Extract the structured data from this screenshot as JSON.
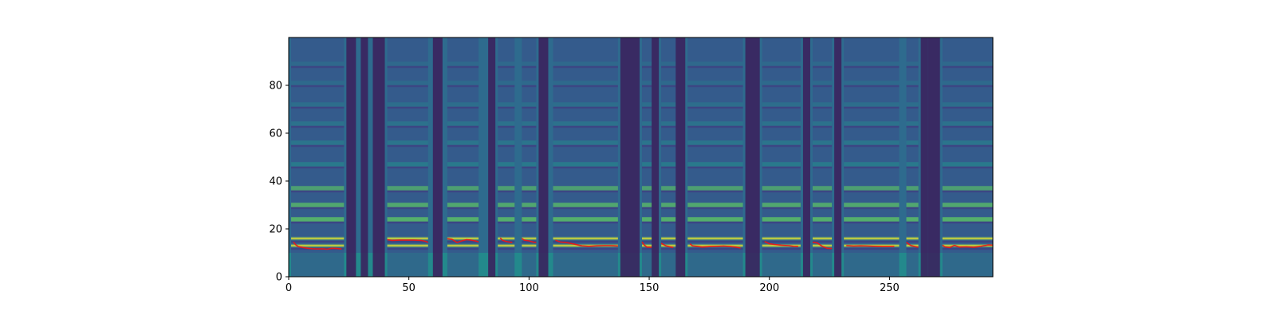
{
  "chart_data": {
    "type": "heatmap",
    "title": "",
    "xlabel": "",
    "ylabel": "",
    "xlim": [
      0,
      293
    ],
    "ylim": [
      0,
      100
    ],
    "x_ticks": [
      0,
      50,
      100,
      150,
      200,
      250
    ],
    "y_ticks": [
      0,
      20,
      40,
      60,
      80
    ],
    "colormap": "viridis",
    "grid": false,
    "heatmap": {
      "description_bands": "mel-spectrogram-like image, bright horizontal harmonic bands during voiced segments",
      "voiced_segments": [
        [
          1,
          23
        ],
        [
          41,
          58
        ],
        [
          66,
          79
        ],
        [
          87,
          94
        ],
        [
          97,
          103
        ],
        [
          110,
          137
        ],
        [
          147,
          151
        ],
        [
          155,
          161
        ],
        [
          166,
          189
        ],
        [
          197,
          213
        ],
        [
          218,
          226
        ],
        [
          231,
          254
        ],
        [
          257,
          262
        ],
        [
          272,
          293
        ]
      ],
      "dark_gaps": [
        [
          24,
          28
        ],
        [
          30,
          33
        ],
        [
          35,
          40
        ],
        [
          60,
          64
        ],
        [
          83,
          86
        ],
        [
          104,
          108
        ],
        [
          138,
          146
        ],
        [
          151,
          154
        ],
        [
          161,
          165
        ],
        [
          190,
          196
        ],
        [
          214,
          217
        ],
        [
          227,
          230
        ],
        [
          263,
          266
        ],
        [
          266,
          271
        ]
      ],
      "harmonic_rows": [
        13,
        16,
        24,
        30,
        37,
        47,
        56,
        64,
        72,
        81,
        89
      ]
    },
    "series": [
      {
        "color": "#e31a1c",
        "segments": [
          [
            [
              2,
              14.5
            ],
            [
              3,
              13.3
            ],
            [
              4,
              12.6
            ],
            [
              6,
              12.2
            ],
            [
              8,
              11.9
            ],
            [
              10,
              11.7
            ],
            [
              12,
              11.6
            ],
            [
              14,
              11.7
            ],
            [
              16,
              11.5
            ],
            [
              18,
              11.9
            ],
            [
              20,
              11.8
            ],
            [
              22,
              11.6
            ]
          ],
          [
            [
              41,
              15.5
            ],
            [
              43,
              15.2
            ],
            [
              46,
              15.3
            ],
            [
              49,
              15.3
            ],
            [
              52,
              15.3
            ],
            [
              55,
              15.2
            ],
            [
              57,
              14.8
            ],
            [
              58,
              14.3
            ]
          ],
          [
            [
              66,
              15.9
            ],
            [
              68,
              15.6
            ],
            [
              70,
              14.3
            ],
            [
              72,
              15.0
            ],
            [
              74,
              15.5
            ],
            [
              76,
              15.3
            ],
            [
              78,
              14.9
            ],
            [
              79,
              14.5
            ]
          ],
          [
            [
              88,
              16.2
            ],
            [
              89,
              15.2
            ],
            [
              91,
              14.6
            ],
            [
              93,
              14.3
            ]
          ],
          [
            [
              97,
              16.0
            ],
            [
              98,
              15.3
            ],
            [
              100,
              15.0
            ],
            [
              102,
              14.4
            ],
            [
              103,
              14.3
            ]
          ],
          [
            [
              111,
              15.3
            ],
            [
              113,
              14.5
            ],
            [
              116,
              14.2
            ],
            [
              119,
              13.6
            ],
            [
              122,
              12.9
            ],
            [
              125,
              12.7
            ],
            [
              128,
              12.9
            ],
            [
              131,
              13.0
            ],
            [
              134,
              13.0
            ],
            [
              137,
              12.8
            ]
          ],
          [
            [
              147,
              14.5
            ],
            [
              148,
              13.2
            ],
            [
              149,
              12.4
            ],
            [
              151,
              12.3
            ]
          ],
          [
            [
              155,
              14.0
            ],
            [
              157,
              12.9
            ],
            [
              159,
              12.4
            ],
            [
              160,
              12.2
            ]
          ],
          [
            [
              167,
              13.8
            ],
            [
              168,
              12.9
            ],
            [
              170,
              12.7
            ],
            [
              172,
              12.4
            ],
            [
              175,
              12.6
            ],
            [
              178,
              12.7
            ],
            [
              181,
              12.8
            ],
            [
              184,
              12.6
            ],
            [
              186,
              12.4
            ],
            [
              188,
              12.0
            ]
          ],
          [
            [
              198,
              14.7
            ],
            [
              200,
              13.8
            ],
            [
              202,
              13.5
            ],
            [
              205,
              13.2
            ],
            [
              208,
              13.0
            ],
            [
              210,
              12.7
            ],
            [
              212,
              12.6
            ]
          ],
          [
            [
              218,
              14.4
            ],
            [
              220,
              14.1
            ],
            [
              222,
              12.7
            ],
            [
              224,
              11.9
            ],
            [
              226,
              11.8
            ]
          ],
          [
            [
              232,
              13.0
            ],
            [
              235,
              12.8
            ],
            [
              238,
              12.9
            ],
            [
              241,
              12.8
            ],
            [
              244,
              12.7
            ],
            [
              247,
              12.6
            ],
            [
              250,
              12.6
            ],
            [
              252,
              12.6
            ]
          ],
          [
            [
              257,
              14.3
            ],
            [
              259,
              13.0
            ],
            [
              261,
              12.5
            ],
            [
              262,
              12.3
            ]
          ],
          [
            [
              272,
              13.2
            ],
            [
              273,
              12.5
            ],
            [
              275,
              12.2
            ],
            [
              277,
              13.1
            ],
            [
              279,
              12.4
            ],
            [
              282,
              12.5
            ],
            [
              285,
              12.3
            ],
            [
              288,
              12.7
            ],
            [
              291,
              13.3
            ],
            [
              293,
              13.2
            ]
          ]
        ]
      }
    ]
  }
}
